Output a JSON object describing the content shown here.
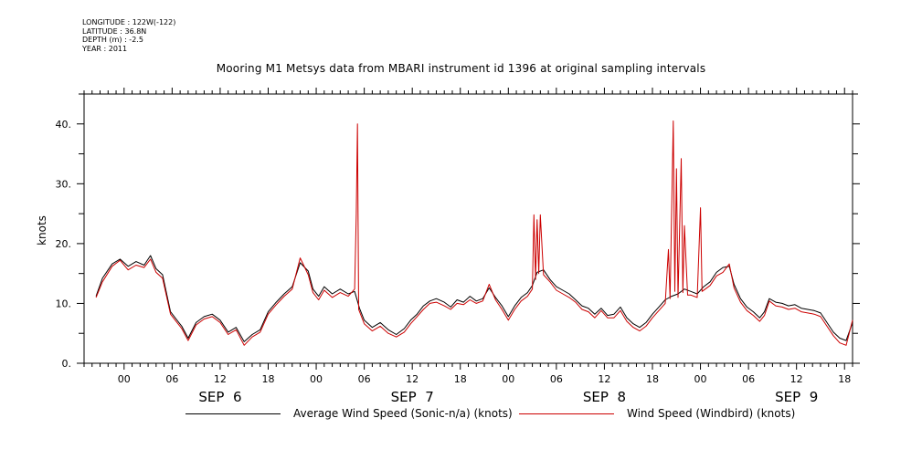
{
  "meta": {
    "longitude": "LONGITUDE : 122W(-122)",
    "latitude": "LATITUDE : 36.8N",
    "depth": "DEPTH (m) : -2.5",
    "year": "YEAR : 2011"
  },
  "chart_data": {
    "type": "line",
    "title": "Mooring M1 Metsys data from MBARI instrument id 1396 at original sampling intervals",
    "ylabel": "knots",
    "xlabel": "",
    "x_units": "hours since Sep 6 00:00",
    "xlim": [
      -5,
      91
    ],
    "ylim": [
      0,
      45
    ],
    "yticks": [
      0,
      10,
      20,
      30,
      40
    ],
    "ytick_labels": [
      "0.",
      "10.",
      "20.",
      "30.",
      "40."
    ],
    "xticks": [
      {
        "t": 0,
        "label": "00"
      },
      {
        "t": 6,
        "label": "06"
      },
      {
        "t": 12,
        "label": "12"
      },
      {
        "t": 18,
        "label": "18"
      },
      {
        "t": 24,
        "label": "00"
      },
      {
        "t": 30,
        "label": "06"
      },
      {
        "t": 36,
        "label": "12"
      },
      {
        "t": 42,
        "label": "18"
      },
      {
        "t": 48,
        "label": "00"
      },
      {
        "t": 54,
        "label": "06"
      },
      {
        "t": 60,
        "label": "12"
      },
      {
        "t": 66,
        "label": "18"
      },
      {
        "t": 72,
        "label": "00"
      },
      {
        "t": 78,
        "label": "06"
      },
      {
        "t": 84,
        "label": "12"
      },
      {
        "t": 90,
        "label": "18"
      }
    ],
    "day_labels": [
      {
        "t": 12,
        "label": "SEP  6"
      },
      {
        "t": 36,
        "label": "SEP  7"
      },
      {
        "t": 60,
        "label": "SEP  8"
      },
      {
        "t": 84,
        "label": "SEP  9"
      }
    ],
    "series": [
      {
        "name": "Average Wind Speed (Sonic-n/a) (knots)",
        "color": "#000000",
        "points": [
          [
            -3.5,
            11.2
          ],
          [
            -2.7,
            14.2
          ],
          [
            -1.5,
            16.6
          ],
          [
            -0.5,
            17.4
          ],
          [
            0.5,
            16.2
          ],
          [
            1.5,
            17.0
          ],
          [
            2.5,
            16.4
          ],
          [
            3.3,
            18.0
          ],
          [
            4.0,
            15.8
          ],
          [
            4.8,
            14.8
          ],
          [
            5.8,
            8.6
          ],
          [
            6.5,
            7.4
          ],
          [
            7.2,
            6.2
          ],
          [
            8.0,
            4.2
          ],
          [
            9.0,
            6.8
          ],
          [
            10.0,
            7.8
          ],
          [
            11.0,
            8.2
          ],
          [
            12.0,
            7.2
          ],
          [
            13.0,
            5.2
          ],
          [
            14.0,
            6.0
          ],
          [
            15.0,
            3.6
          ],
          [
            16.0,
            4.8
          ],
          [
            17.0,
            5.6
          ],
          [
            18.0,
            8.6
          ],
          [
            19.0,
            10.2
          ],
          [
            20.0,
            11.6
          ],
          [
            21.0,
            12.8
          ],
          [
            22.0,
            16.8
          ],
          [
            23.0,
            15.4
          ],
          [
            23.6,
            12.4
          ],
          [
            24.3,
            11.2
          ],
          [
            25.0,
            12.8
          ],
          [
            26.0,
            11.6
          ],
          [
            27.0,
            12.4
          ],
          [
            28.0,
            11.6
          ],
          [
            28.8,
            12.0
          ],
          [
            29.4,
            9.2
          ],
          [
            30.0,
            7.2
          ],
          [
            31.0,
            6.0
          ],
          [
            32.0,
            6.8
          ],
          [
            33.0,
            5.6
          ],
          [
            34.0,
            4.8
          ],
          [
            35.0,
            5.8
          ],
          [
            35.8,
            7.2
          ],
          [
            36.6,
            8.2
          ],
          [
            37.4,
            9.6
          ],
          [
            38.2,
            10.4
          ],
          [
            39.0,
            10.8
          ],
          [
            40.0,
            10.2
          ],
          [
            40.8,
            9.4
          ],
          [
            41.6,
            10.6
          ],
          [
            42.4,
            10.2
          ],
          [
            43.2,
            11.2
          ],
          [
            44.0,
            10.4
          ],
          [
            44.8,
            10.8
          ],
          [
            45.6,
            12.6
          ],
          [
            46.4,
            11.0
          ],
          [
            47.2,
            9.6
          ],
          [
            48.0,
            7.8
          ],
          [
            48.8,
            9.6
          ],
          [
            49.6,
            11.0
          ],
          [
            50.4,
            11.8
          ],
          [
            51.0,
            13.0
          ],
          [
            51.6,
            15.2
          ],
          [
            52.4,
            15.6
          ],
          [
            53.2,
            14.0
          ],
          [
            54.0,
            12.8
          ],
          [
            54.8,
            12.2
          ],
          [
            55.6,
            11.6
          ],
          [
            56.4,
            10.6
          ],
          [
            57.2,
            9.6
          ],
          [
            58.0,
            9.2
          ],
          [
            58.8,
            8.2
          ],
          [
            59.6,
            9.2
          ],
          [
            60.4,
            8.0
          ],
          [
            61.2,
            8.2
          ],
          [
            62.0,
            9.4
          ],
          [
            62.8,
            7.6
          ],
          [
            63.6,
            6.6
          ],
          [
            64.4,
            6.0
          ],
          [
            65.2,
            6.8
          ],
          [
            66.0,
            8.2
          ],
          [
            66.8,
            9.4
          ],
          [
            67.6,
            10.6
          ],
          [
            68.4,
            11.2
          ],
          [
            69.2,
            11.6
          ],
          [
            70.0,
            12.4
          ],
          [
            70.8,
            12.0
          ],
          [
            71.6,
            11.6
          ],
          [
            72.4,
            12.8
          ],
          [
            73.2,
            13.6
          ],
          [
            74.0,
            15.2
          ],
          [
            74.8,
            16.0
          ],
          [
            75.6,
            16.2
          ],
          [
            76.2,
            13.2
          ],
          [
            77.0,
            10.8
          ],
          [
            77.8,
            9.4
          ],
          [
            78.6,
            8.6
          ],
          [
            79.4,
            7.6
          ],
          [
            80.0,
            8.6
          ],
          [
            80.6,
            10.8
          ],
          [
            81.4,
            10.2
          ],
          [
            82.2,
            10.0
          ],
          [
            83.0,
            9.6
          ],
          [
            83.8,
            9.8
          ],
          [
            84.6,
            9.2
          ],
          [
            85.4,
            9.0
          ],
          [
            86.2,
            8.8
          ],
          [
            87.0,
            8.4
          ],
          [
            87.8,
            6.8
          ],
          [
            88.6,
            5.2
          ],
          [
            89.4,
            4.2
          ],
          [
            90.2,
            3.8
          ],
          [
            91.0,
            6.8
          ]
        ]
      },
      {
        "name": "Wind Speed (Windbird) (knots)",
        "color": "#cc0000",
        "points": [
          [
            -3.5,
            11.0
          ],
          [
            -2.7,
            13.6
          ],
          [
            -1.5,
            16.2
          ],
          [
            -0.5,
            17.2
          ],
          [
            0.5,
            15.6
          ],
          [
            1.5,
            16.4
          ],
          [
            2.5,
            16.0
          ],
          [
            3.3,
            17.4
          ],
          [
            4.0,
            15.2
          ],
          [
            4.8,
            14.2
          ],
          [
            5.8,
            8.2
          ],
          [
            6.5,
            7.0
          ],
          [
            7.2,
            5.8
          ],
          [
            8.0,
            3.8
          ],
          [
            9.0,
            6.4
          ],
          [
            10.0,
            7.4
          ],
          [
            11.0,
            7.8
          ],
          [
            12.0,
            6.8
          ],
          [
            13.0,
            4.8
          ],
          [
            14.0,
            5.6
          ],
          [
            15.0,
            3.0
          ],
          [
            16.0,
            4.4
          ],
          [
            17.0,
            5.2
          ],
          [
            18.0,
            8.2
          ],
          [
            19.0,
            9.8
          ],
          [
            20.0,
            11.2
          ],
          [
            21.0,
            12.4
          ],
          [
            22.0,
            17.6
          ],
          [
            23.0,
            14.8
          ],
          [
            23.6,
            11.8
          ],
          [
            24.3,
            10.6
          ],
          [
            25.0,
            12.2
          ],
          [
            26.0,
            11.0
          ],
          [
            27.0,
            11.8
          ],
          [
            28.0,
            11.2
          ],
          [
            28.8,
            12.4
          ],
          [
            29.0,
            25.0
          ],
          [
            29.15,
            40.0
          ],
          [
            29.3,
            9.0
          ],
          [
            30.0,
            6.6
          ],
          [
            31.0,
            5.4
          ],
          [
            32.0,
            6.2
          ],
          [
            33.0,
            5.0
          ],
          [
            34.0,
            4.4
          ],
          [
            35.0,
            5.2
          ],
          [
            35.8,
            6.6
          ],
          [
            36.6,
            7.8
          ],
          [
            37.4,
            9.0
          ],
          [
            38.2,
            10.0
          ],
          [
            39.0,
            10.2
          ],
          [
            40.0,
            9.6
          ],
          [
            40.8,
            9.0
          ],
          [
            41.6,
            10.0
          ],
          [
            42.4,
            9.8
          ],
          [
            43.2,
            10.6
          ],
          [
            44.0,
            10.0
          ],
          [
            44.8,
            10.4
          ],
          [
            45.6,
            13.2
          ],
          [
            46.4,
            10.6
          ],
          [
            47.2,
            9.0
          ],
          [
            48.0,
            7.2
          ],
          [
            48.8,
            9.0
          ],
          [
            49.6,
            10.4
          ],
          [
            50.4,
            11.2
          ],
          [
            51.0,
            12.4
          ],
          [
            51.2,
            24.8
          ],
          [
            51.4,
            14.0
          ],
          [
            51.6,
            24.0
          ],
          [
            51.8,
            15.0
          ],
          [
            52.0,
            24.8
          ],
          [
            52.4,
            14.8
          ],
          [
            53.2,
            13.6
          ],
          [
            54.0,
            12.2
          ],
          [
            54.8,
            11.6
          ],
          [
            55.6,
            11.0
          ],
          [
            56.4,
            10.2
          ],
          [
            57.2,
            9.0
          ],
          [
            58.0,
            8.6
          ],
          [
            58.8,
            7.6
          ],
          [
            59.6,
            8.8
          ],
          [
            60.4,
            7.6
          ],
          [
            61.2,
            7.6
          ],
          [
            62.0,
            8.8
          ],
          [
            62.8,
            7.0
          ],
          [
            63.6,
            6.0
          ],
          [
            64.4,
            5.4
          ],
          [
            65.2,
            6.2
          ],
          [
            66.0,
            7.6
          ],
          [
            66.8,
            8.8
          ],
          [
            67.6,
            10.0
          ],
          [
            68.0,
            19.0
          ],
          [
            68.2,
            10.8
          ],
          [
            68.6,
            40.5
          ],
          [
            68.8,
            12.0
          ],
          [
            69.0,
            32.5
          ],
          [
            69.2,
            11.0
          ],
          [
            69.6,
            34.2
          ],
          [
            69.8,
            11.8
          ],
          [
            70.0,
            23.0
          ],
          [
            70.4,
            11.4
          ],
          [
            70.8,
            11.4
          ],
          [
            71.6,
            11.0
          ],
          [
            72.0,
            26.0
          ],
          [
            72.2,
            12.0
          ],
          [
            73.2,
            13.0
          ],
          [
            74.0,
            14.6
          ],
          [
            74.8,
            15.2
          ],
          [
            75.6,
            16.6
          ],
          [
            76.2,
            12.6
          ],
          [
            77.0,
            10.2
          ],
          [
            77.8,
            8.8
          ],
          [
            78.6,
            8.0
          ],
          [
            79.4,
            7.0
          ],
          [
            80.0,
            8.0
          ],
          [
            80.6,
            10.4
          ],
          [
            81.4,
            9.6
          ],
          [
            82.2,
            9.4
          ],
          [
            83.0,
            9.0
          ],
          [
            83.8,
            9.2
          ],
          [
            84.6,
            8.6
          ],
          [
            85.4,
            8.4
          ],
          [
            86.2,
            8.2
          ],
          [
            87.0,
            7.8
          ],
          [
            87.8,
            6.2
          ],
          [
            88.6,
            4.6
          ],
          [
            89.4,
            3.4
          ],
          [
            90.2,
            3.0
          ],
          [
            91.0,
            7.2
          ]
        ]
      }
    ]
  }
}
